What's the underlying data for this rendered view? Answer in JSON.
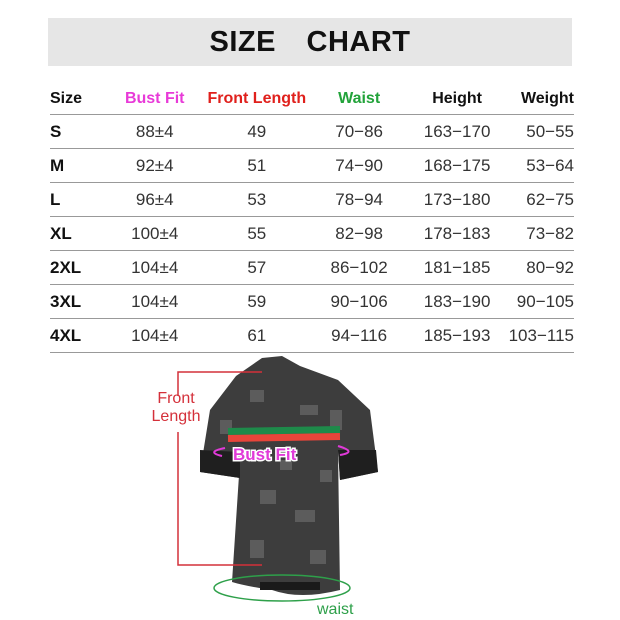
{
  "title": "SIZE CHART",
  "headers": [
    {
      "label": "Size",
      "color": "#111111"
    },
    {
      "label": "Bust Fit",
      "color": "#e83ad8"
    },
    {
      "label": "Front Length",
      "color": "#e0201c"
    },
    {
      "label": "Waist",
      "color": "#22a33a"
    },
    {
      "label": "Height",
      "color": "#111111"
    },
    {
      "label": "Weight",
      "color": "#111111"
    }
  ],
  "rows": [
    [
      "S",
      "88±4",
      "49",
      "70−86",
      "163−170",
      "50−55"
    ],
    [
      "M",
      "92±4",
      "51",
      "74−90",
      "168−175",
      "53−64"
    ],
    [
      "L",
      "96±4",
      "53",
      "78−94",
      "173−180",
      "62−75"
    ],
    [
      "XL",
      "100±4",
      "55",
      "82−98",
      "178−183",
      "73−82"
    ],
    [
      "2XL",
      "104±4",
      "57",
      "86−102",
      "181−185",
      "80−92"
    ],
    [
      "3XL",
      "104±4",
      "59",
      "90−106",
      "183−190",
      "90−105"
    ],
    [
      "4XL",
      "104±4",
      "61",
      "94−116",
      "185−193",
      "103−115"
    ]
  ],
  "figure": {
    "front_length_label_1": "Front",
    "front_length_label_2": "Length",
    "bust_label": "Bust Fit",
    "waist_label": "waist"
  }
}
